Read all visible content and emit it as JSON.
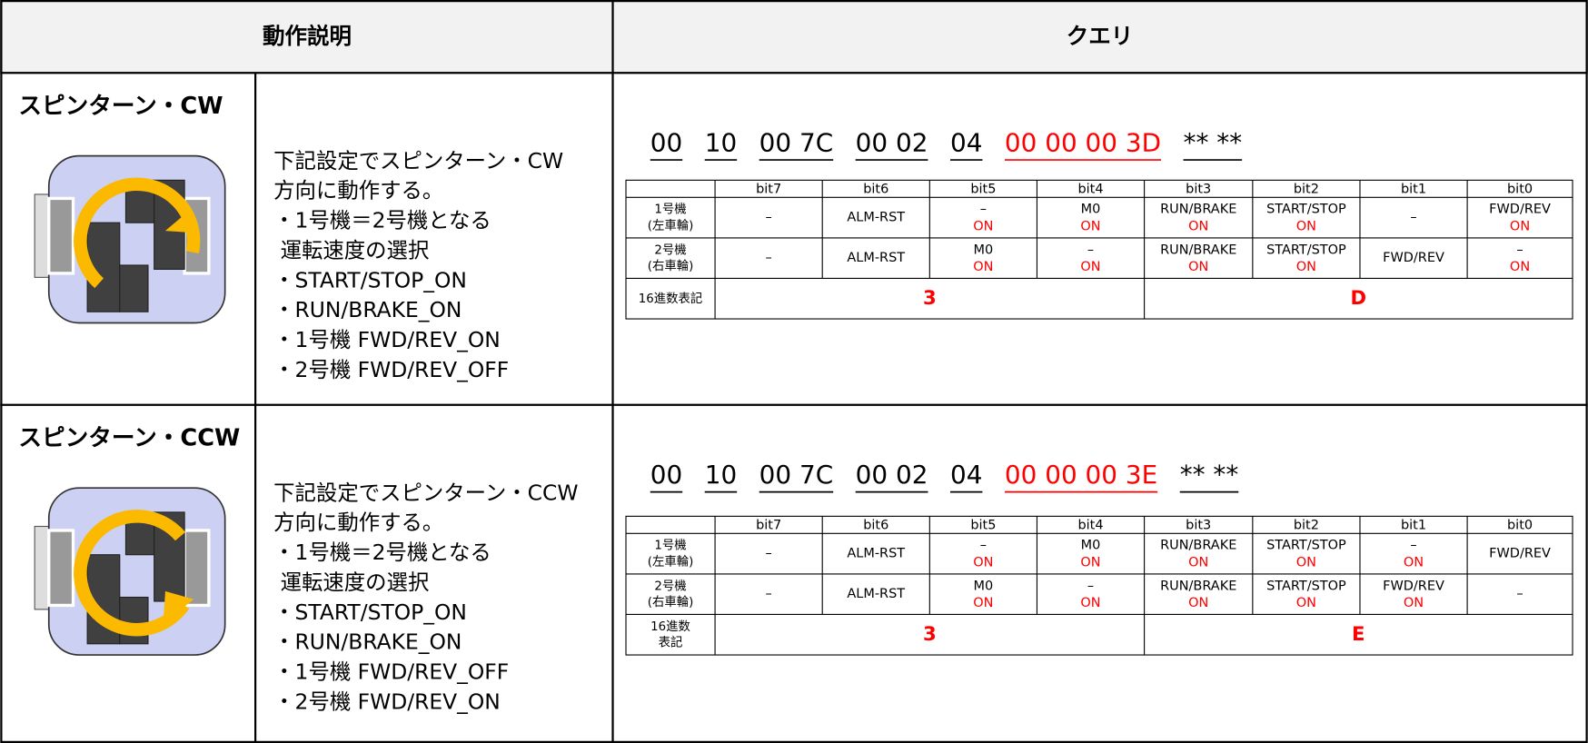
{
  "header": {
    "description": "動作説明",
    "query": "クエリ"
  },
  "rows": [
    {
      "title": "スピンターン・CW",
      "description_lines": [
        "下記設定でスピンターン・CW",
        "方向に動作する。",
        "・1号機＝2号機となる",
        " 運転速度の選択",
        "・START/STOP_ON",
        "・RUN/BRAKE_ON",
        "・1号機 FWD/REV_ON",
        "・2号機 FWD/REV_OFF"
      ],
      "query": {
        "segments": [
          "00",
          "10",
          "00 7C",
          "00 02",
          "04"
        ],
        "value": "00 00 00 3D",
        "suffix": "** **"
      },
      "bit_table": {
        "columns": [
          "bit7",
          "bit6",
          "bit5",
          "bit4",
          "bit3",
          "bit2",
          "bit1",
          "bit0"
        ],
        "rows": [
          {
            "label": [
              "1号機",
              "(左車輪)"
            ],
            "cells": [
              {
                "name": "–"
              },
              {
                "name": "ALM-RST"
              },
              {
                "name": "–",
                "state": "ON"
              },
              {
                "name": "M0",
                "state": "ON"
              },
              {
                "name": "RUN/BRAKE",
                "state": "ON"
              },
              {
                "name": "START/STOP",
                "state": "ON"
              },
              {
                "name": "–"
              },
              {
                "name": "FWD/REV",
                "state": "ON"
              }
            ]
          },
          {
            "label": [
              "2号機",
              "(右車輪)"
            ],
            "cells": [
              {
                "name": "–"
              },
              {
                "name": "ALM-RST"
              },
              {
                "name": "M0",
                "state": "ON"
              },
              {
                "name": "–",
                "state": "ON"
              },
              {
                "name": "RUN/BRAKE",
                "state": "ON"
              },
              {
                "name": "START/STOP",
                "state": "ON"
              },
              {
                "name": "FWD/REV"
              },
              {
                "name": "–",
                "state": "ON"
              }
            ]
          }
        ],
        "hex_label": [
          "16進数表記"
        ],
        "hex": [
          "3",
          "D"
        ]
      }
    },
    {
      "title": "スピンターン・CCW",
      "description_lines": [
        "下記設定でスピンターン・CCW",
        "方向に動作する。",
        "・1号機＝2号機となる",
        " 運転速度の選択",
        "・START/STOP_ON",
        "・RUN/BRAKE_ON",
        "・1号機 FWD/REV_OFF",
        "・2号機 FWD/REV_ON"
      ],
      "query": {
        "segments": [
          "00",
          "10",
          "00 7C",
          "00 02",
          "04"
        ],
        "value": "00 00 00 3E",
        "suffix": "** **"
      },
      "bit_table": {
        "columns": [
          "bit7",
          "bit6",
          "bit5",
          "bit4",
          "bit3",
          "bit2",
          "bit1",
          "bit0"
        ],
        "rows": [
          {
            "label": [
              "1号機",
              "(左車輪)"
            ],
            "cells": [
              {
                "name": "–"
              },
              {
                "name": "ALM-RST"
              },
              {
                "name": "–",
                "state": "ON"
              },
              {
                "name": "M0",
                "state": "ON"
              },
              {
                "name": "RUN/BRAKE",
                "state": "ON"
              },
              {
                "name": "START/STOP",
                "state": "ON"
              },
              {
                "name": "–",
                "state": "ON"
              },
              {
                "name": "FWD/REV"
              }
            ]
          },
          {
            "label": [
              "2号機",
              "(右車輪)"
            ],
            "cells": [
              {
                "name": "–"
              },
              {
                "name": "ALM-RST"
              },
              {
                "name": "M0",
                "state": "ON"
              },
              {
                "name": "–",
                "state": "ON"
              },
              {
                "name": "RUN/BRAKE",
                "state": "ON"
              },
              {
                "name": "START/STOP",
                "state": "ON"
              },
              {
                "name": "FWD/REV",
                "state": "ON"
              },
              {
                "name": "–"
              }
            ]
          }
        ],
        "hex_label": [
          "16進数",
          "表記"
        ],
        "hex": [
          "3",
          "E"
        ]
      }
    }
  ]
}
